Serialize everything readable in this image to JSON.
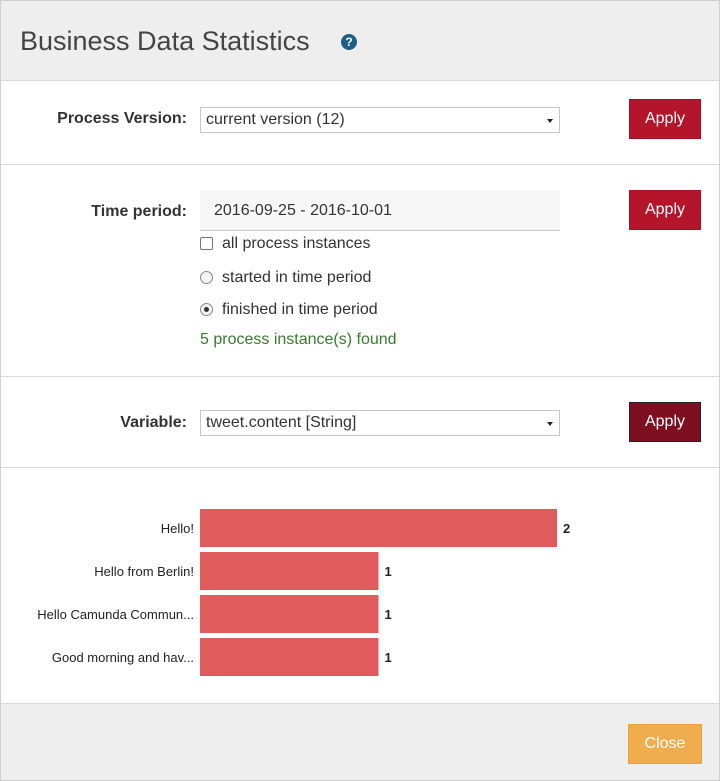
{
  "header": {
    "title": "Business Data Statistics",
    "help_icon": "question-circle-icon"
  },
  "process_version": {
    "label": "Process Version:",
    "selected": "current version (12)",
    "apply_label": "Apply"
  },
  "time_period": {
    "label": "Time period:",
    "value": "2016-09-25 - 2016-10-01",
    "apply_label": "Apply",
    "all_instances": {
      "label": "all process instances",
      "checked": false
    },
    "started": {
      "label": "started in time period",
      "selected": false
    },
    "finished": {
      "label": "finished in time period",
      "selected": true
    },
    "found_text": "5 process instance(s) found"
  },
  "variable": {
    "label": "Variable:",
    "selected": "tweet.content [String]",
    "apply_label": "Apply"
  },
  "chart_data": {
    "type": "bar",
    "orientation": "horizontal",
    "categories": [
      "Hello!",
      "Hello from Berlin!",
      "Hello Camunda Commun...",
      "Good morning and hav..."
    ],
    "values": [
      2,
      1,
      1,
      1
    ],
    "xlim": [
      0,
      2
    ],
    "bar_color": "#e05c5c",
    "grid": false
  },
  "footer": {
    "close_label": "Close"
  },
  "colors": {
    "apply": "#b5152b",
    "close": "#f0ad4e",
    "found": "#3a7a2f"
  }
}
